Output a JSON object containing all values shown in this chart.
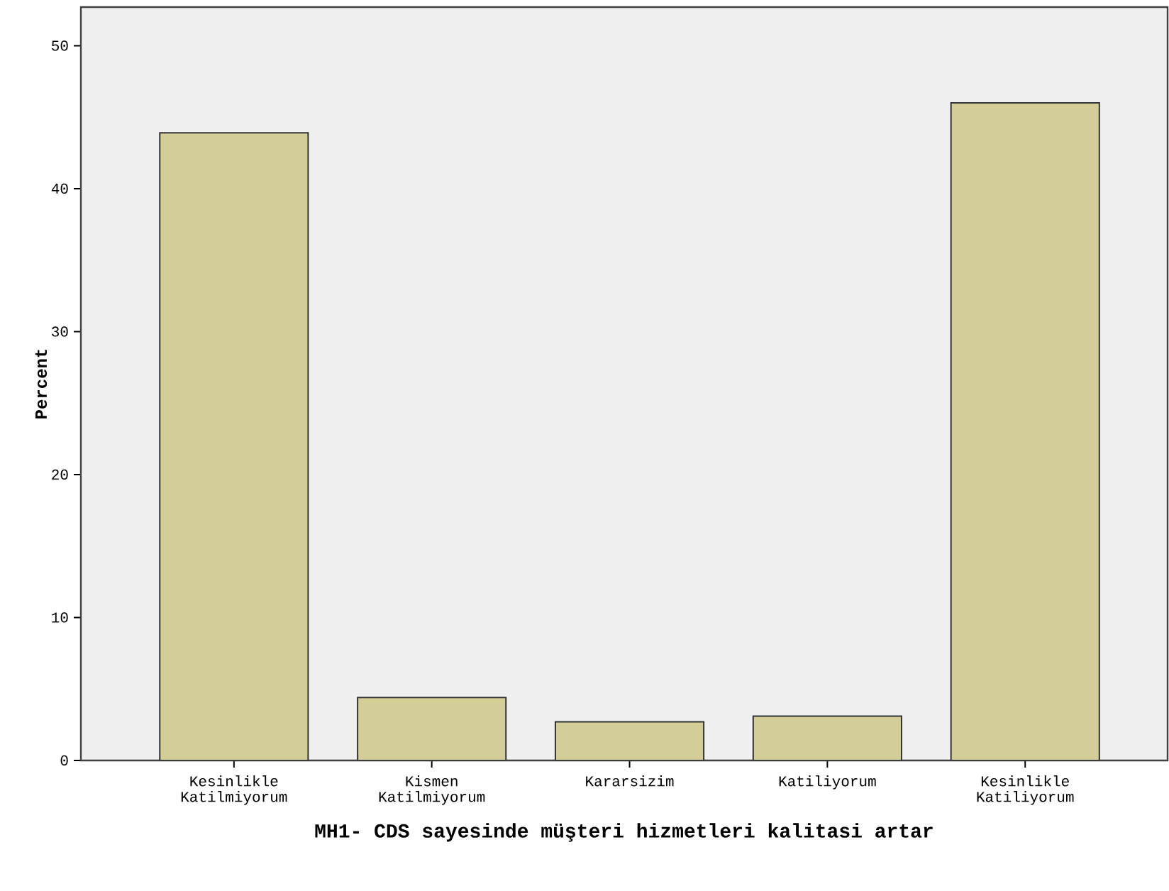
{
  "chart_data": {
    "type": "bar",
    "xlabel": "MH1- CDS sayesinde müşteri hizmetleri kalitasi artar",
    "ylabel": "Percent",
    "categories": [
      "Kesinlikle Katilmiyorum",
      "Kismen Katilmiyorum",
      "Kararsizim",
      "Katiliyorum",
      "Kesinlikle Katiliyorum"
    ],
    "values": [
      43.9,
      4.4,
      2.7,
      3.1,
      46.0
    ],
    "color": "#d3ce98",
    "ylim": [
      0,
      52.7
    ],
    "yticks": [
      0,
      10,
      20,
      30,
      40,
      50
    ]
  }
}
